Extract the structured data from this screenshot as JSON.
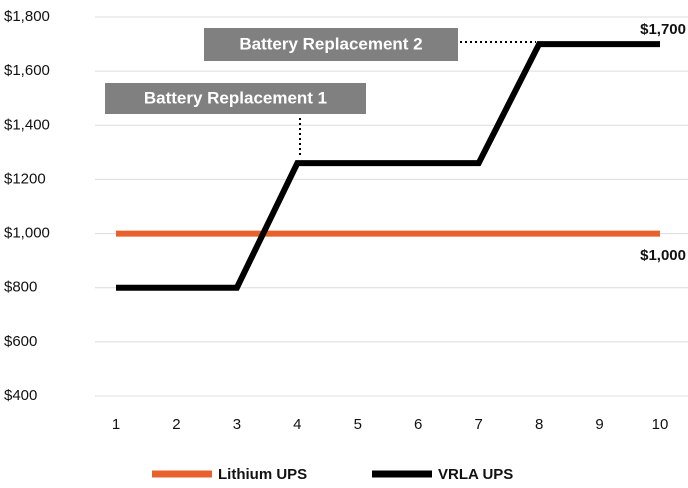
{
  "chart_data": {
    "type": "line",
    "x": [
      1,
      2,
      3,
      4,
      5,
      6,
      7,
      8,
      9,
      10
    ],
    "xlim": [
      1,
      10
    ],
    "xticks": [
      1,
      2,
      3,
      4,
      5,
      6,
      7,
      8,
      9,
      10
    ],
    "ylim": [
      400,
      1800
    ],
    "yticks": [
      {
        "value": 400,
        "label": "$400"
      },
      {
        "value": 600,
        "label": "$600"
      },
      {
        "value": 800,
        "label": "$800"
      },
      {
        "value": 1000,
        "label": "$1,000"
      },
      {
        "value": 1200,
        "label": "$1200"
      },
      {
        "value": 1400,
        "label": "$1,400"
      },
      {
        "value": 1600,
        "label": "$1,600"
      },
      {
        "value": 1800,
        "label": "$1,800"
      }
    ],
    "grid": true,
    "legend": "bottom",
    "series": [
      {
        "name": "Lithium UPS",
        "color": "#e8602c",
        "values": [
          1000,
          1000,
          1000,
          1000,
          1000,
          1000,
          1000,
          1000,
          1000,
          1000
        ],
        "value_labels": [
          null,
          null,
          null,
          null,
          null,
          null,
          null,
          null,
          null,
          "$1,000"
        ]
      },
      {
        "name": "VRLA UPS",
        "color": "#000000",
        "values": [
          800,
          800,
          800,
          1260,
          1260,
          1260,
          1260,
          1700,
          1700,
          1700
        ],
        "value_labels": [
          null,
          null,
          null,
          null,
          null,
          null,
          null,
          null,
          null,
          "$1,700"
        ]
      }
    ],
    "annotations": [
      "Battery Replacement 1",
      "Battery Replacement 2"
    ]
  }
}
